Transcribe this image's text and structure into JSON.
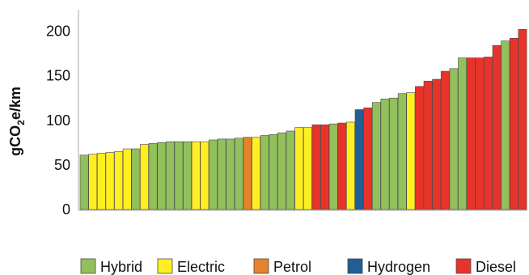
{
  "chart_data": {
    "type": "bar",
    "ylabel": "gCO2e/km",
    "ylabel_parts": {
      "base": "gCO",
      "subscript": "2",
      "rest": "e/km"
    },
    "ylim": [
      0,
      220
    ],
    "yticks": [
      "0",
      "50",
      "100",
      "150",
      "200"
    ],
    "grid": false,
    "legend_placement": "bottom",
    "legend": [
      {
        "name": "Hybrid",
        "color": "#92c05c"
      },
      {
        "name": "Electric",
        "color": "#ffee22"
      },
      {
        "name": "Petrol",
        "color": "#e6822b"
      },
      {
        "name": "Hydrogen",
        "color": "#1f5f94"
      },
      {
        "name": "Diesel",
        "color": "#e8332a"
      }
    ],
    "bars": [
      {
        "type": "Hybrid",
        "value": 61
      },
      {
        "type": "Electric",
        "value": 62
      },
      {
        "type": "Electric",
        "value": 63
      },
      {
        "type": "Electric",
        "value": 64
      },
      {
        "type": "Electric",
        "value": 65
      },
      {
        "type": "Electric",
        "value": 68
      },
      {
        "type": "Hybrid",
        "value": 68
      },
      {
        "type": "Electric",
        "value": 73
      },
      {
        "type": "Hybrid",
        "value": 74
      },
      {
        "type": "Hybrid",
        "value": 75
      },
      {
        "type": "Hybrid",
        "value": 76
      },
      {
        "type": "Hybrid",
        "value": 76
      },
      {
        "type": "Hybrid",
        "value": 76
      },
      {
        "type": "Electric",
        "value": 76
      },
      {
        "type": "Electric",
        "value": 76
      },
      {
        "type": "Hybrid",
        "value": 78
      },
      {
        "type": "Hybrid",
        "value": 79
      },
      {
        "type": "Hybrid",
        "value": 79
      },
      {
        "type": "Hybrid",
        "value": 80
      },
      {
        "type": "Petrol",
        "value": 81
      },
      {
        "type": "Electric",
        "value": 81
      },
      {
        "type": "Hybrid",
        "value": 83
      },
      {
        "type": "Hybrid",
        "value": 84
      },
      {
        "type": "Hybrid",
        "value": 86
      },
      {
        "type": "Hybrid",
        "value": 88
      },
      {
        "type": "Electric",
        "value": 92
      },
      {
        "type": "Electric",
        "value": 92
      },
      {
        "type": "Diesel",
        "value": 95
      },
      {
        "type": "Diesel",
        "value": 95
      },
      {
        "type": "Hybrid",
        "value": 96
      },
      {
        "type": "Diesel",
        "value": 97
      },
      {
        "type": "Electric",
        "value": 98
      },
      {
        "type": "Hydrogen",
        "value": 112
      },
      {
        "type": "Diesel",
        "value": 114
      },
      {
        "type": "Hybrid",
        "value": 120
      },
      {
        "type": "Hybrid",
        "value": 124
      },
      {
        "type": "Hybrid",
        "value": 125
      },
      {
        "type": "Hybrid",
        "value": 130
      },
      {
        "type": "Electric",
        "value": 131
      },
      {
        "type": "Diesel",
        "value": 138
      },
      {
        "type": "Diesel",
        "value": 144
      },
      {
        "type": "Diesel",
        "value": 146
      },
      {
        "type": "Diesel",
        "value": 155
      },
      {
        "type": "Hybrid",
        "value": 158
      },
      {
        "type": "Hybrid",
        "value": 170
      },
      {
        "type": "Diesel",
        "value": 170
      },
      {
        "type": "Diesel",
        "value": 170
      },
      {
        "type": "Diesel",
        "value": 171
      },
      {
        "type": "Diesel",
        "value": 184
      },
      {
        "type": "Hybrid",
        "value": 189
      },
      {
        "type": "Diesel",
        "value": 192
      },
      {
        "type": "Diesel",
        "value": 202
      }
    ]
  }
}
